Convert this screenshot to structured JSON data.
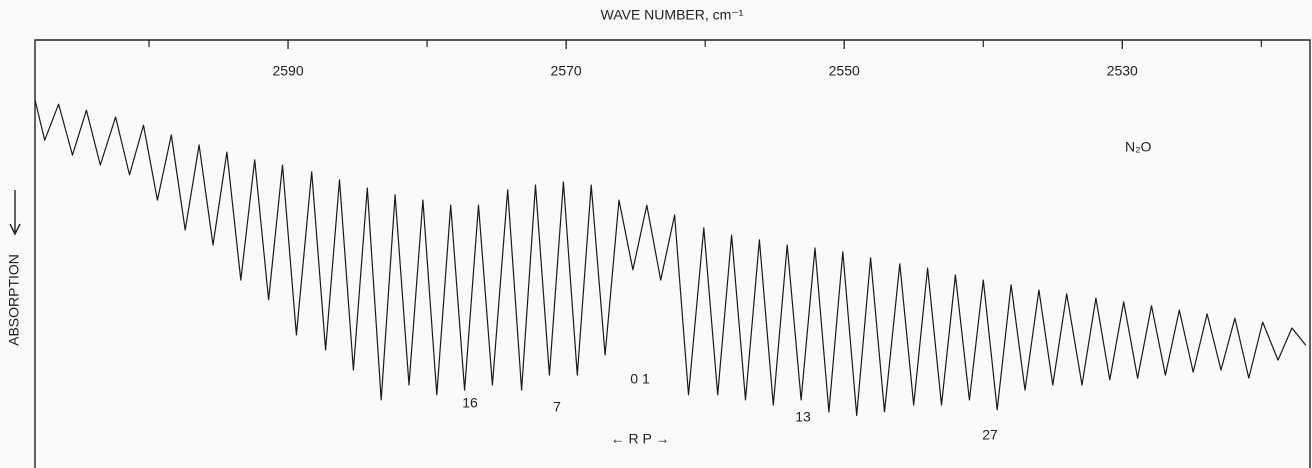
{
  "chart_data": {
    "type": "line",
    "title": "WAVE NUMBER, cm⁻¹",
    "ylabel": "ABSORPTION",
    "label": "N₂O",
    "annotations": [
      "16",
      "7",
      "0 1",
      "13",
      "27",
      "← R P →"
    ],
    "xlim": [
      2608.2,
      2516.5
    ],
    "xticks": [
      2590,
      2570,
      2550,
      2530
    ],
    "xminorticks": [
      2600,
      2580,
      2560,
      2540,
      2520
    ],
    "ylim": [
      0,
      100
    ],
    "yinvert": true,
    "color": "#1a1a1a",
    "grid": false,
    "x": [
      2608.2,
      2607.5,
      2606.5,
      2605.5,
      2604.5,
      2603.5,
      2602.4,
      2601.4,
      2600.4,
      2599.4,
      2598.4,
      2597.4,
      2596.4,
      2595.4,
      2594.4,
      2593.4,
      2592.4,
      2591.4,
      2590.4,
      2589.4,
      2588.3,
      2587.3,
      2586.3,
      2585.3,
      2584.3,
      2583.3,
      2582.3,
      2581.3,
      2580.3,
      2579.3,
      2578.3,
      2577.3,
      2576.3,
      2575.3,
      2574.2,
      2573.2,
      2572.2,
      2571.2,
      2570.2,
      2569.2,
      2568.2,
      2567.2,
      2566.2,
      2565.2,
      2564.2,
      2563.2,
      2562.2,
      2561.2,
      2560.1,
      2559.1,
      2558.1,
      2557.1,
      2556.1,
      2555.1,
      2554.1,
      2553.1,
      2552.1,
      2551.1,
      2550.1,
      2549.1,
      2548.1,
      2547.1,
      2546.0,
      2545.0,
      2544.0,
      2543.0,
      2542.0,
      2541.0,
      2540.0,
      2539.0,
      2538.0,
      2537.0,
      2536.0,
      2535.0,
      2534.0,
      2532.9,
      2531.9,
      2530.9,
      2529.9,
      2528.9,
      2527.9,
      2526.9,
      2525.9,
      2524.9,
      2523.9,
      2522.9,
      2521.9,
      2520.9,
      2519.9,
      2518.8,
      2517.8,
      2516.8
    ],
    "values": [
      14.0,
      23.4,
      15.0,
      26.9,
      16.4,
      29.2,
      18.0,
      31.5,
      19.9,
      37.4,
      22.2,
      44.4,
      24.5,
      47.9,
      26.2,
      56.1,
      28.0,
      60.7,
      29.2,
      68.9,
      30.8,
      72.4,
      32.7,
      77.1,
      34.6,
      84.1,
      36.2,
      80.6,
      37.4,
      82.9,
      38.6,
      81.8,
      38.6,
      80.6,
      35.0,
      81.8,
      33.9,
      78.3,
      33.2,
      78.3,
      33.9,
      73.6,
      37.4,
      53.7,
      38.6,
      56.1,
      40.9,
      82.9,
      43.9,
      82.9,
      45.6,
      84.1,
      46.7,
      85.3,
      47.9,
      84.1,
      48.6,
      86.9,
      49.5,
      87.7,
      50.9,
      86.9,
      52.3,
      85.3,
      53.3,
      85.3,
      54.9,
      84.1,
      56.1,
      86.4,
      57.2,
      81.8,
      58.4,
      80.6,
      59.3,
      80.6,
      60.3,
      79.4,
      61.2,
      79.0,
      62.1,
      78.3,
      63.1,
      77.6,
      64.0,
      77.1,
      65.0,
      79.0,
      65.9,
      74.8,
      67.3,
      71.3
    ]
  }
}
